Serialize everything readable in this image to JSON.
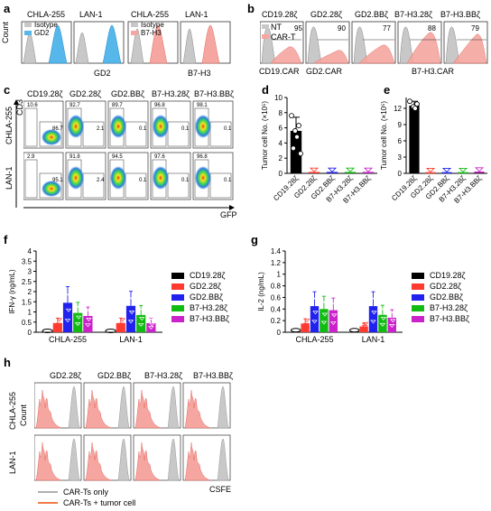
{
  "panels": {
    "a": {
      "letter": "a",
      "left": {
        "titles": [
          "CHLA-255",
          "LAN-1"
        ],
        "legend": [
          "Isotype",
          "GD2"
        ],
        "ylabel": "Count",
        "xlabel": "GD2"
      },
      "right": {
        "titles": [
          "CHLA-255",
          "LAN-1"
        ],
        "legend": [
          "Isotype",
          "B7-H3"
        ],
        "xlabel": "B7-H3"
      }
    },
    "b": {
      "letter": "b",
      "titles": [
        "CD19.28ζ",
        "GD2.28ζ",
        "GD2.BBζ",
        "B7-H3.28ζ",
        "B7-H3.BBζ"
      ],
      "values": [
        "95",
        "90",
        "77",
        "88",
        "79"
      ],
      "legend": [
        "NT",
        "CAR-T"
      ],
      "xlabels": [
        "CD19.CAR",
        "GD2.CAR",
        "B7-H3.CAR"
      ]
    },
    "c": {
      "letter": "c",
      "titles": [
        "CD19.28ζ",
        "GD2.28ζ",
        "GD2.BBζ",
        "B7-H3.28ζ",
        "B7-H3.BBζ"
      ],
      "rows": [
        "CHLA-255",
        "LAN-1"
      ],
      "ylabel": "CD3",
      "xlabel": "GFP",
      "top_left": [
        [
          "10.6",
          "92.7",
          "89.7",
          "96.8",
          "98.1"
        ],
        [
          "2.9",
          "91.8",
          "94.5",
          "97.6",
          "96.8"
        ]
      ],
      "right_values": [
        [
          "86.7",
          "2.1",
          "0.1",
          "0.1",
          "0.1"
        ],
        [
          "95.1",
          "2.4",
          "0.1",
          "0.1",
          "0.1"
        ]
      ]
    },
    "d": {
      "letter": "d"
    },
    "e": {
      "letter": "e"
    },
    "f": {
      "letter": "f"
    },
    "g": {
      "letter": "g"
    },
    "h": {
      "letter": "h",
      "titles": [
        "GD2.28ζ",
        "GD2.BBζ",
        "B7-H3.28ζ",
        "B7-H3.BBζ"
      ],
      "rows": [
        "CHLA-255",
        "LAN-1"
      ],
      "ylabel": "Count",
      "xlabel": "CSFE",
      "legend": [
        "CAR-Ts only",
        "CAR-Ts + tumor cell"
      ]
    }
  },
  "chart_data": [
    {
      "type": "bar",
      "panel": "d",
      "categories": [
        "CD19.28ζ",
        "GD2.28ζ",
        "GD2.BBζ",
        "B7-H3.28ζ",
        "B7-H3.BBζ"
      ],
      "values": [
        5.6,
        0.1,
        0.1,
        0.1,
        0.1
      ],
      "ylabel": "Tumor cell No. (×10⁵)",
      "ylim": [
        0,
        10
      ],
      "yticks": [
        "0",
        "2",
        "4",
        "6",
        "8",
        "10"
      ],
      "colors": [
        "#000000",
        "#ff3b30",
        "#2222ee",
        "#11bb11",
        "#cc22cc"
      ]
    },
    {
      "type": "bar",
      "panel": "e",
      "categories": [
        "CD19.28ζ",
        "GD2.28ζ",
        "GD2.BBζ",
        "B7-H3.28ζ",
        "B7-H3.BBζ"
      ],
      "values": [
        12.5,
        0.1,
        0.1,
        0.1,
        0.2
      ],
      "ylabel": "Tumor cell No. (×10⁵)",
      "ylim": [
        0,
        14
      ],
      "yticks": [
        "0",
        "3",
        "6",
        "9",
        "12"
      ],
      "colors": [
        "#000000",
        "#ff3b30",
        "#2222ee",
        "#11bb11",
        "#cc22cc"
      ]
    },
    {
      "type": "bar",
      "panel": "f",
      "categories": [
        "CHLA-255",
        "LAN-1"
      ],
      "series": [
        {
          "name": "CD19.28ζ",
          "values": [
            0.02,
            0.02
          ]
        },
        {
          "name": "GD2.28ζ",
          "values": [
            0.45,
            0.45
          ]
        },
        {
          "name": "GD2.BBζ",
          "values": [
            1.45,
            1.3
          ]
        },
        {
          "name": "B7-H3.28ζ",
          "values": [
            0.95,
            0.85
          ]
        },
        {
          "name": "B7-H3.BBζ",
          "values": [
            0.8,
            0.45
          ]
        }
      ],
      "ylabel": "IFN-γ (ng/mL)",
      "ylim": [
        0,
        4
      ],
      "yticks": [
        "0",
        "0.5",
        "1",
        "1.5",
        "2",
        "2.5",
        "3",
        "3.5",
        "4"
      ],
      "colors": [
        "#000000",
        "#ff3b30",
        "#2222ee",
        "#11bb11",
        "#cc22cc"
      ]
    },
    {
      "type": "bar",
      "panel": "g",
      "categories": [
        "CHLA-255",
        "LAN-1"
      ],
      "series": [
        {
          "name": "CD19.28ζ",
          "values": [
            0.02,
            0.02
          ]
        },
        {
          "name": "GD2.28ζ",
          "values": [
            0.15,
            0.1
          ]
        },
        {
          "name": "GD2.BBζ",
          "values": [
            0.45,
            0.45
          ]
        },
        {
          "name": "B7-H3.28ζ",
          "values": [
            0.4,
            0.3
          ]
        },
        {
          "name": "B7-H3.BBζ",
          "values": [
            0.38,
            0.25
          ]
        }
      ],
      "ylabel": "IL-2 (ng/mL)",
      "ylim": [
        0,
        1.4
      ],
      "yticks": [
        "0",
        "0.2",
        "0.4",
        "0.6",
        "0.8",
        "1",
        "1.2",
        "1.4"
      ],
      "colors": [
        "#000000",
        "#ff3b30",
        "#2222ee",
        "#11bb11",
        "#cc22cc"
      ]
    }
  ]
}
